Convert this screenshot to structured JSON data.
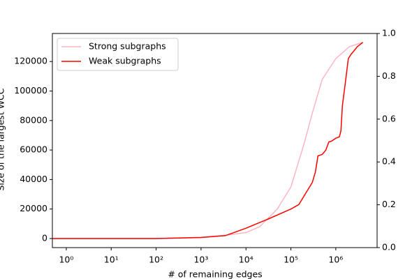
{
  "chart_data": {
    "type": "line",
    "xlabel": "# of remaining edges",
    "ylabel": "Size of the largest WCC",
    "xscale": "log",
    "xlim": [
      0.49,
      8300000
    ],
    "xticks": [
      {
        "value": 1,
        "label": "10⁰"
      },
      {
        "value": 10,
        "label": "10¹"
      },
      {
        "value": 100,
        "label": "10²"
      },
      {
        "value": 1000,
        "label": "10³"
      },
      {
        "value": 10000,
        "label": "10⁴"
      },
      {
        "value": 100000,
        "label": "10⁵"
      },
      {
        "value": 1000000,
        "label": "10⁶"
      }
    ],
    "ylim": [
      -6150,
      139000
    ],
    "yticks": [
      0,
      20000,
      40000,
      60000,
      80000,
      100000,
      120000
    ],
    "y2lim": [
      0,
      1
    ],
    "y2ticks": [
      {
        "value": 0,
        "label": "0.0"
      },
      0.2,
      0.4,
      0.6,
      0.8,
      {
        "value": 1,
        "label": "1.0"
      }
    ],
    "legend": "upper left",
    "series": [
      {
        "name": "Strong subgraphs",
        "color": "#ffb6c1",
        "x": [
          0.5,
          100,
          1000,
          3000,
          10000,
          20000,
          50000,
          100000,
          200000,
          300000,
          500000,
          1000000,
          2000000,
          4000000
        ],
        "values": [
          0,
          0,
          800,
          2000,
          4000,
          8000,
          20000,
          35000,
          65000,
          85000,
          108000,
          122000,
          130000,
          133000
        ]
      },
      {
        "name": "Weak subgraphs",
        "color": "#ff0000",
        "x": [
          0.5,
          100,
          1000,
          3500,
          10000,
          30000,
          100000,
          150000,
          300000,
          350000,
          400000,
          500000,
          600000,
          700000,
          800000,
          1000000,
          1200000,
          1300000,
          1400000,
          1700000,
          1900000,
          2200000,
          2500000,
          3000000,
          4000000
        ],
        "values": [
          0,
          0,
          700,
          2000,
          7000,
          13000,
          20000,
          23000,
          38000,
          45000,
          56000,
          57000,
          60000,
          65500,
          66000,
          68000,
          69000,
          73000,
          90000,
          110000,
          122000,
          125000,
          127000,
          130000,
          133000
        ]
      }
    ]
  }
}
